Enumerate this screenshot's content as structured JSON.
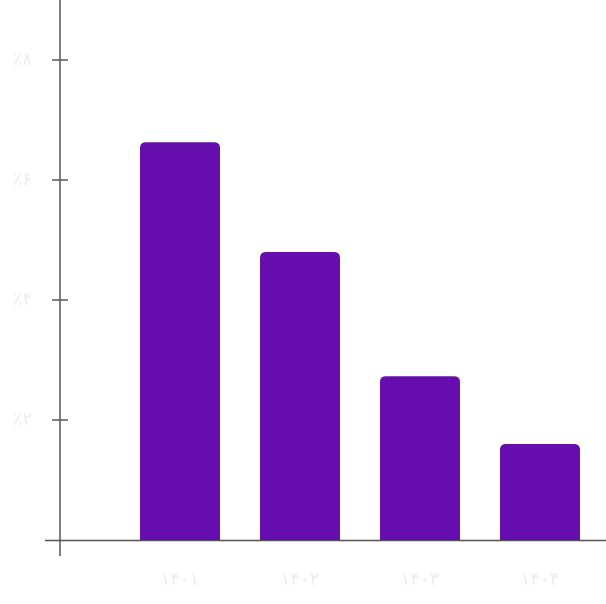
{
  "chart_data": {
    "type": "bar",
    "categories": [
      "۱۴۰۱",
      "۱۴۰۲",
      "۱۴۰۳",
      "۱۴۰۴"
    ],
    "values": [
      6.63,
      4.8,
      2.73,
      1.6
    ],
    "color": "#650ead",
    "ylim": [
      0,
      9
    ],
    "yticks": [
      {
        "value": 2,
        "label": "٪۲"
      },
      {
        "value": 4,
        "label": "٪۴"
      },
      {
        "value": 6,
        "label": "٪۶"
      },
      {
        "value": 8,
        "label": "٪۸"
      }
    ]
  }
}
